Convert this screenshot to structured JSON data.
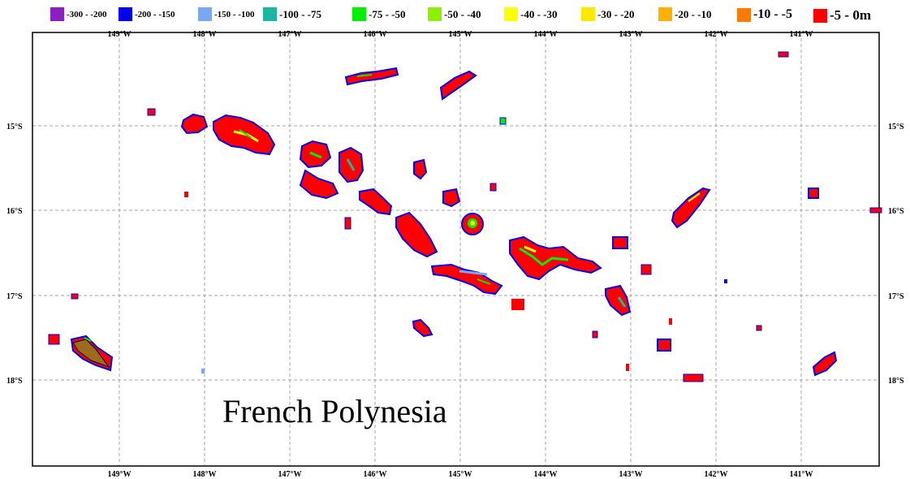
{
  "legend": [
    {
      "label": "-300 - -200",
      "color": "#8C1FC2"
    },
    {
      "label": "-200 - -150",
      "color": "#0000F0"
    },
    {
      "label": "-150 - -100",
      "color": "#79A7F2"
    },
    {
      "label": "-100 - -75",
      "color": "#1CB7A0"
    },
    {
      "label": "-75 - -50",
      "color": "#00F000"
    },
    {
      "label": "-50 - -40",
      "color": "#8DF000"
    },
    {
      "label": "-40 - -30",
      "color": "#FFFF00"
    },
    {
      "label": "-30 - -20",
      "color": "#FFE800"
    },
    {
      "label": "-20 - -10",
      "color": "#FFB000"
    },
    {
      "label": "-10 - -5",
      "color": "#FF7A00"
    },
    {
      "label": "-5 - 0m",
      "color": "#FF0000"
    }
  ],
  "lon_labels": [
    "149°W",
    "148°W",
    "147°W",
    "146°W",
    "145°W",
    "144°W",
    "143°W",
    "142°W",
    "141°W"
  ],
  "lat_labels": [
    "15°S",
    "16°S",
    "17°S",
    "18°S"
  ],
  "map_title": "French Polynesia",
  "colors": {
    "grid": "#A6A6A6",
    "frame": "#000000",
    "land": "#9C6B1E"
  }
}
